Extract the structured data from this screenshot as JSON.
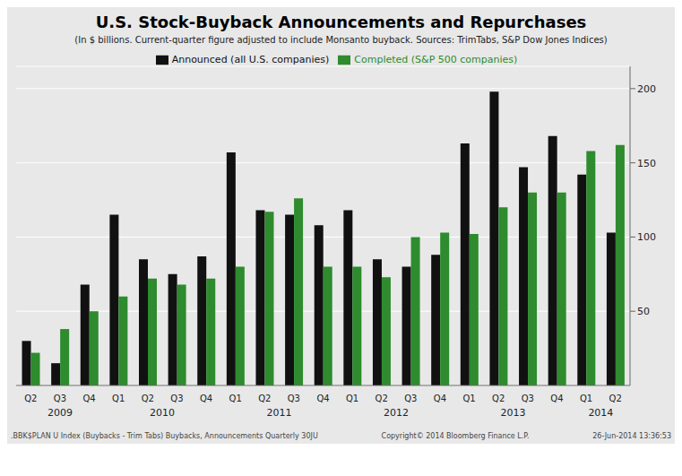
{
  "chart_data": {
    "type": "bar",
    "title": "U.S. Stock-Buyback Announcements and Repurchases",
    "subtitle": "(In $ billions. Current-quarter figure adjusted to include Monsanto buyback. Sources: TrimTabs, S&P Dow Jones Indices)",
    "annotations": [
      ".BBK$PLAN U Index (Buybacks - Trim Tabs) Buybacks, Announcements  Quarterly 30JU",
      "Copyright© 2014 Bloomberg Finance L.P.",
      "26-Jun-2014 13:36:53"
    ],
    "year_labels": [
      "2009",
      "2010",
      "2011",
      "2012",
      "2013",
      "2014"
    ],
    "categories": [
      "Q2",
      "Q3",
      "Q4",
      "Q1",
      "Q2",
      "Q3",
      "Q4",
      "Q1",
      "Q2",
      "Q3",
      "Q4",
      "Q1",
      "Q2",
      "Q3",
      "Q4",
      "Q1",
      "Q2",
      "Q3",
      "Q4",
      "Q1",
      "Q2"
    ],
    "series": [
      {
        "name": "Announced (all U.S. companies)",
        "color": "#111111",
        "values": [
          30,
          15,
          68,
          115,
          85,
          75,
          87,
          157,
          118,
          115,
          108,
          118,
          85,
          80,
          88,
          163,
          198,
          147,
          168,
          142,
          103
        ]
      },
      {
        "name": "Completed (S&P 500 companies)",
        "color": "#2e8b2e",
        "values": [
          22,
          38,
          50,
          60,
          72,
          68,
          72,
          80,
          117,
          126,
          80,
          80,
          73,
          100,
          103,
          102,
          120,
          130,
          130,
          158,
          162
        ]
      }
    ],
    "ylim": [
      0,
      215
    ],
    "yticks": [
      50,
      100,
      150,
      200
    ],
    "grid": true,
    "legend": "top"
  }
}
